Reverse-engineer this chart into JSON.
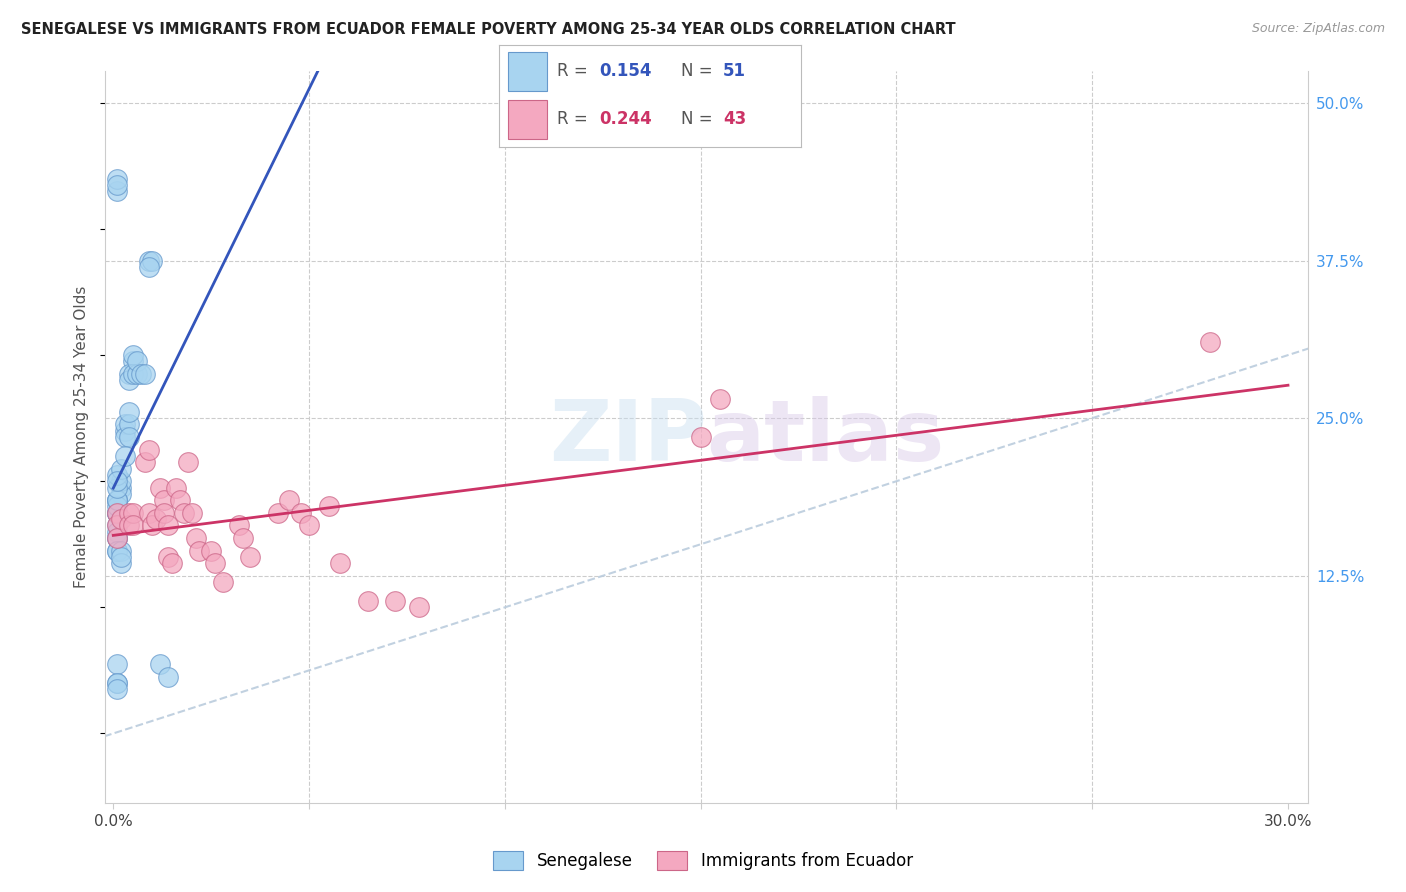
{
  "title": "SENEGALESE VS IMMIGRANTS FROM ECUADOR FEMALE POVERTY AMONG 25-34 YEAR OLDS CORRELATION CHART",
  "source": "Source: ZipAtlas.com",
  "ylabel": "Female Poverty Among 25-34 Year Olds",
  "color_blue": "#A8D4F0",
  "color_pink": "#F4A8C0",
  "edge_blue": "#6699CC",
  "edge_pink": "#CC6688",
  "trendline_blue": "#3355BB",
  "trendline_pink": "#CC3366",
  "dashed_color": "#BBCCDD",
  "grid_color": "#CCCCCC",
  "background": "#FFFFFF",
  "senegalese_x": [
    0.001,
    0.001,
    0.001,
    0.001,
    0.002,
    0.002,
    0.001,
    0.001,
    0.001,
    0.001,
    0.002,
    0.001,
    0.001,
    0.002,
    0.001,
    0.003,
    0.003,
    0.003,
    0.004,
    0.004,
    0.004,
    0.003,
    0.005,
    0.005,
    0.004,
    0.004,
    0.005,
    0.006,
    0.006,
    0.007,
    0.008,
    0.009,
    0.01,
    0.009,
    0.001,
    0.001,
    0.001,
    0.001,
    0.001,
    0.002,
    0.002,
    0.002,
    0.012,
    0.014,
    0.001,
    0.001,
    0.001,
    0.001,
    0.001,
    0.001,
    0.001
  ],
  "senegalese_y": [
    0.175,
    0.185,
    0.165,
    0.175,
    0.195,
    0.19,
    0.185,
    0.175,
    0.18,
    0.185,
    0.2,
    0.195,
    0.205,
    0.21,
    0.2,
    0.24,
    0.245,
    0.235,
    0.245,
    0.255,
    0.235,
    0.22,
    0.295,
    0.3,
    0.285,
    0.28,
    0.285,
    0.285,
    0.295,
    0.285,
    0.285,
    0.375,
    0.375,
    0.37,
    0.155,
    0.145,
    0.16,
    0.155,
    0.145,
    0.145,
    0.135,
    0.14,
    0.055,
    0.045,
    0.43,
    0.44,
    0.435,
    0.04,
    0.055,
    0.04,
    0.035
  ],
  "ecuador_x": [
    0.001,
    0.001,
    0.001,
    0.002,
    0.004,
    0.004,
    0.005,
    0.005,
    0.008,
    0.009,
    0.009,
    0.01,
    0.011,
    0.012,
    0.013,
    0.013,
    0.014,
    0.014,
    0.015,
    0.016,
    0.017,
    0.018,
    0.019,
    0.02,
    0.021,
    0.022,
    0.025,
    0.026,
    0.028,
    0.032,
    0.033,
    0.035,
    0.042,
    0.045,
    0.048,
    0.05,
    0.055,
    0.058,
    0.065,
    0.072,
    0.078,
    0.15,
    0.155,
    0.28
  ],
  "ecuador_y": [
    0.175,
    0.165,
    0.155,
    0.17,
    0.175,
    0.165,
    0.175,
    0.165,
    0.215,
    0.225,
    0.175,
    0.165,
    0.17,
    0.195,
    0.185,
    0.175,
    0.165,
    0.14,
    0.135,
    0.195,
    0.185,
    0.175,
    0.215,
    0.175,
    0.155,
    0.145,
    0.145,
    0.135,
    0.12,
    0.165,
    0.155,
    0.14,
    0.175,
    0.185,
    0.175,
    0.165,
    0.18,
    0.135,
    0.105,
    0.105,
    0.1,
    0.235,
    0.265,
    0.31
  ],
  "xlim": [
    -0.002,
    0.305
  ],
  "ylim": [
    -0.055,
    0.525
  ],
  "yticks_right": [
    0.125,
    0.25,
    0.375,
    0.5
  ],
  "ytick_labels_right": [
    "12.5%",
    "25.0%",
    "37.5%",
    "50.0%"
  ],
  "xticks": [
    0.0,
    0.05,
    0.1,
    0.15,
    0.2,
    0.25,
    0.3
  ],
  "xtick_labels": [
    "0.0%",
    "",
    "",
    "",
    "",
    "",
    "30.0%"
  ]
}
